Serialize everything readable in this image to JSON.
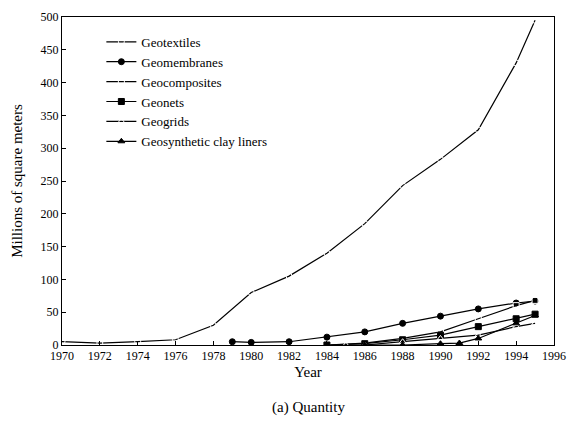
{
  "chart_data": {
    "type": "line",
    "x_label": "Year",
    "y_label": "Millions of square meters",
    "annotations": [
      "(a) Quantity"
    ],
    "xlim": [
      1970,
      1996
    ],
    "xticks": [
      1970,
      1972,
      1974,
      1976,
      1978,
      1980,
      1982,
      1984,
      1986,
      1988,
      1990,
      1992,
      1994,
      1996
    ],
    "ylim": [
      0,
      500
    ],
    "yticks": [
      0,
      50,
      100,
      150,
      200,
      250,
      300,
      350,
      400,
      450,
      500
    ],
    "grid": false,
    "legend": "upper left",
    "series": [
      {
        "name": "Geotextiles",
        "color": "#000000",
        "marker": "circle-open",
        "line_style": "solid",
        "x": [
          1970,
          1972,
          1974,
          1976,
          1978,
          1980,
          1982,
          1984,
          1986,
          1988,
          1990,
          1992,
          1994,
          1995
        ],
        "values": [
          5,
          3,
          5,
          8,
          30,
          80,
          105,
          140,
          185,
          243,
          283,
          328,
          430,
          495
        ]
      },
      {
        "name": "Geomembranes",
        "color": "#000000",
        "marker": "circle",
        "line_style": "solid",
        "x": [
          1979,
          1980,
          1982,
          1984,
          1986,
          1988,
          1990,
          1992,
          1994,
          1995
        ],
        "values": [
          5,
          4,
          5,
          12,
          20,
          33,
          44,
          55,
          64,
          67
        ]
      },
      {
        "name": "Geocomposites",
        "color": "#000000",
        "marker": "square-open",
        "line_style": "solid",
        "x": [
          1984,
          1986,
          1988,
          1990,
          1992,
          1994,
          1995
        ],
        "values": [
          0,
          3,
          10,
          20,
          40,
          60,
          68
        ]
      },
      {
        "name": "Geonets",
        "color": "#000000",
        "marker": "square",
        "line_style": "solid",
        "x": [
          1984,
          1986,
          1988,
          1990,
          1992,
          1994,
          1995
        ],
        "values": [
          0,
          2,
          8,
          15,
          28,
          40,
          47
        ]
      },
      {
        "name": "Geogrids",
        "color": "#000000",
        "marker": "triangle-up-open",
        "line_style": "solid",
        "x": [
          1985,
          1986,
          1988,
          1990,
          1992,
          1994,
          1995
        ],
        "values": [
          0,
          0,
          5,
          10,
          15,
          28,
          33
        ]
      },
      {
        "name": "Geosynthetic clay liners",
        "color": "#000000",
        "marker": "triangle-up",
        "line_style": "solid",
        "x": [
          1986,
          1988,
          1990,
          1991,
          1992,
          1994,
          1995
        ],
        "values": [
          0,
          0,
          2,
          3,
          10,
          33,
          45
        ]
      }
    ]
  }
}
